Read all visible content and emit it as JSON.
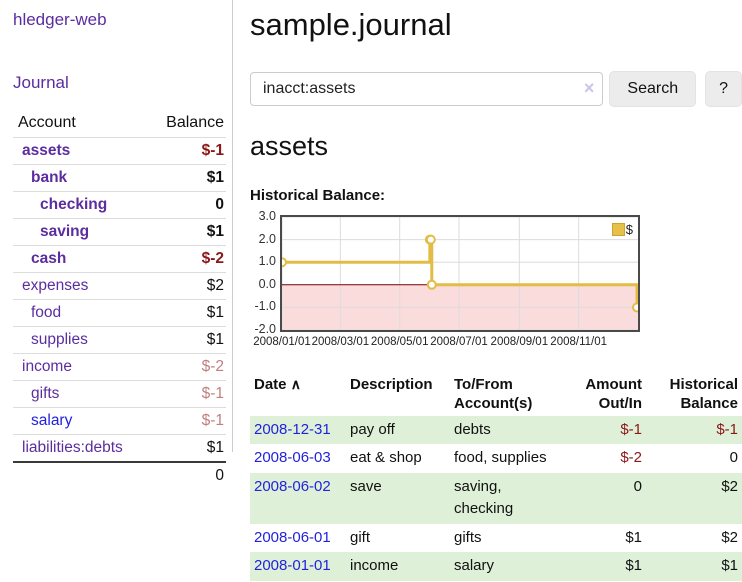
{
  "app": {
    "title": "hledger-web",
    "nav_journal": "Journal"
  },
  "sidebar": {
    "headers": {
      "account": "Account",
      "balance": "Balance"
    },
    "accounts": [
      {
        "name": "assets",
        "balance": "$-1",
        "depth": 0,
        "bold": true,
        "balance_style": "neg-dark",
        "link_color": "purple"
      },
      {
        "name": "bank",
        "balance": "$1",
        "depth": 1,
        "bold": true,
        "balance_style": "pos",
        "link_color": "purple"
      },
      {
        "name": "checking",
        "balance": "0",
        "depth": 2,
        "bold": true,
        "balance_style": "pos",
        "link_color": "purple"
      },
      {
        "name": "saving",
        "balance": "$1",
        "depth": 2,
        "bold": true,
        "balance_style": "pos",
        "link_color": "purple"
      },
      {
        "name": "cash",
        "balance": "$-2",
        "depth": 1,
        "bold": true,
        "balance_style": "neg-dark",
        "link_color": "purple"
      },
      {
        "name": "expenses",
        "balance": "$2",
        "depth": 0,
        "bold": false,
        "balance_style": "pos",
        "link_color": "purple"
      },
      {
        "name": "food",
        "balance": "$1",
        "depth": 1,
        "bold": false,
        "balance_style": "pos",
        "link_color": "purple"
      },
      {
        "name": "supplies",
        "balance": "$1",
        "depth": 1,
        "bold": false,
        "balance_style": "pos",
        "link_color": "purple"
      },
      {
        "name": "income",
        "balance": "$-2",
        "depth": 0,
        "bold": false,
        "balance_style": "neg-light",
        "link_color": "purple"
      },
      {
        "name": "gifts",
        "balance": "$-1",
        "depth": 1,
        "bold": false,
        "balance_style": "neg-light",
        "link_color": "purple"
      },
      {
        "name": "salary",
        "balance": "$-1",
        "depth": 1,
        "bold": false,
        "balance_style": "neg-light",
        "link_color": "blue"
      },
      {
        "name": "liabilities:debts",
        "balance": "$1",
        "depth": 0,
        "bold": false,
        "balance_style": "pos",
        "link_color": "purple"
      }
    ],
    "total": "0"
  },
  "header": {
    "title": "sample.journal"
  },
  "search": {
    "value": "inacct:assets",
    "clear_icon": "×",
    "button_label": "Search",
    "help_label": "?"
  },
  "account_page": {
    "heading": "assets",
    "chart_label": "Historical Balance:"
  },
  "chart_data": {
    "type": "line",
    "step": true,
    "title": "Historical Balance:",
    "x_type": "date",
    "xlim": [
      "2008-01-01",
      "2009-01-01"
    ],
    "ylim": [
      -2,
      3
    ],
    "yticks": [
      "3.0",
      "2.0",
      "1.0",
      "0.0",
      "-1.0",
      "-2.0"
    ],
    "xticks": [
      {
        "date": "2008-01-01",
        "label": "2008/01/01"
      },
      {
        "date": "2008-03-01",
        "label": "2008/03/01"
      },
      {
        "date": "2008-05-01",
        "label": "2008/05/01"
      },
      {
        "date": "2008-07-01",
        "label": "2008/07/01"
      },
      {
        "date": "2008-09-01",
        "label": "2008/09/01"
      },
      {
        "date": "2008-11-01",
        "label": "2008/11/01"
      }
    ],
    "series": [
      {
        "name": "$",
        "points": [
          [
            "2008-01-01",
            1
          ],
          [
            "2008-06-01",
            2
          ],
          [
            "2008-06-02",
            2
          ],
          [
            "2008-06-03",
            0
          ],
          [
            "2008-12-31",
            -1
          ]
        ]
      }
    ],
    "legend": {
      "position": "top-right",
      "entries": [
        "$"
      ]
    },
    "grid": true,
    "zero_line": true,
    "negative_region_shaded": true,
    "colors": {
      "line": "#e3bc46",
      "marker_fill": "#ffffff",
      "negative_region": "#fadcdc",
      "zero_line": "#7c0606",
      "grid": "#dcdcdc",
      "border": "#4a4a4a"
    }
  },
  "register": {
    "headers": {
      "date": "Date",
      "description": "Description",
      "tofrom": "To/From Account(s)",
      "amount": "Amount Out/In",
      "balance": "Historical Balance"
    },
    "icons": {
      "sort_asc": "∧"
    },
    "rows": [
      {
        "date": "2008-12-31",
        "description": "pay off",
        "accounts": "debts",
        "amount": "$-1",
        "amount_negative": true,
        "balance": "$-1",
        "balance_negative": true
      },
      {
        "date": "2008-06-03",
        "description": "eat & shop",
        "accounts": "food, supplies",
        "amount": "$-2",
        "amount_negative": true,
        "balance": "0",
        "balance_negative": false
      },
      {
        "date": "2008-06-02",
        "description": "save",
        "accounts": "saving, checking",
        "amount": "0",
        "amount_negative": false,
        "balance": "$2",
        "balance_negative": false
      },
      {
        "date": "2008-06-01",
        "description": "gift",
        "accounts": "gifts",
        "amount": "$1",
        "amount_negative": false,
        "balance": "$2",
        "balance_negative": false
      },
      {
        "date": "2008-01-01",
        "description": "income",
        "accounts": "salary",
        "amount": "$1",
        "amount_negative": false,
        "balance": "$1",
        "balance_negative": false
      }
    ]
  },
  "colors": {
    "link_purple": "#5b2d9e",
    "link_blue": "#2222dd",
    "negative_dark": "#8b1717",
    "negative_light": "#c08080",
    "row_green": "#dff0d8",
    "button_bg": "#ececec"
  }
}
